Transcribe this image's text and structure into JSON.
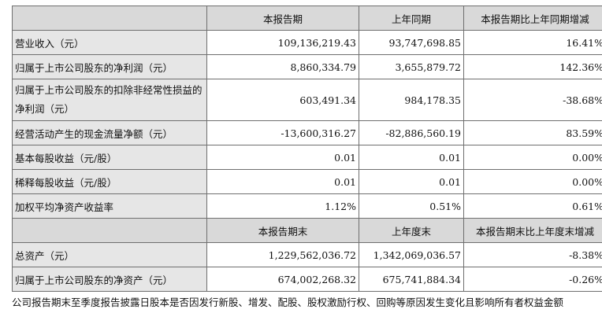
{
  "headers1": [
    "",
    "本报告期",
    "上年同期",
    "本报告期比上年同期增减"
  ],
  "rows1": [
    {
      "label": "营业收入（元）",
      "current": "109,136,219.43",
      "prior": "93,747,698.85",
      "change": "16.41%"
    },
    {
      "label": "归属于上市公司股东的净利润（元）",
      "current": "8,860,334.79",
      "prior": "3,655,879.72",
      "change": "142.36%"
    },
    {
      "label": "归属于上市公司股东的扣除非经常性损益的净利润（元）",
      "current": "603,491.34",
      "prior": "984,178.35",
      "change": "-38.68%"
    },
    {
      "label": "经营活动产生的现金流量净额（元）",
      "current": "-13,600,316.27",
      "prior": "-82,886,560.19",
      "change": "83.59%"
    },
    {
      "label": "基本每股收益（元/股）",
      "current": "0.01",
      "prior": "0.01",
      "change": "0.00%"
    },
    {
      "label": "稀释每股收益（元/股）",
      "current": "0.01",
      "prior": "0.01",
      "change": "0.00%"
    },
    {
      "label": "加权平均净资产收益率",
      "current": "1.12%",
      "prior": "0.51%",
      "change": "0.61%"
    }
  ],
  "headers2": [
    "",
    "本报告期末",
    "上年度末",
    "本报告期末比上年度末增减"
  ],
  "rows2": [
    {
      "label": "总资产（元）",
      "current": "1,229,562,036.72",
      "prior": "1,342,069,036.57",
      "change": "-8.38%"
    },
    {
      "label": "归属于上市公司股东的净资产（元）",
      "current": "674,002,268.32",
      "prior": "675,741,884.34",
      "change": "-0.26%"
    }
  ],
  "note": "公司报告期末至季度报告披露日股本是否因发行新股、增发、配股、股权激励行权、回购等原因发生变化且影响所有者权益金额"
}
